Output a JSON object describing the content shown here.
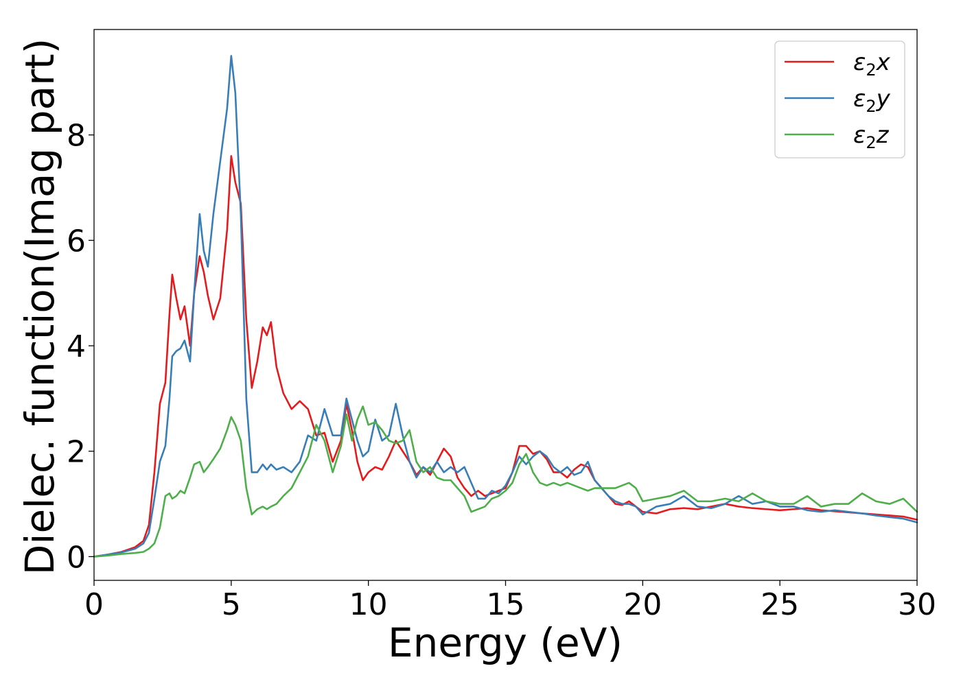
{
  "chart_data": {
    "type": "line",
    "xlabel": "Energy (eV)",
    "ylabel": "Dielec. function(Imag part)",
    "xlim": [
      0,
      30
    ],
    "ylim": [
      -0.45,
      10.0
    ],
    "xticks": [
      0,
      5,
      10,
      15,
      20,
      25,
      30
    ],
    "yticks": [
      0,
      2,
      4,
      6,
      8
    ],
    "grid": false,
    "legend_position": "top-right",
    "x": [
      0,
      0.5,
      1,
      1.5,
      1.8,
      2.0,
      2.2,
      2.4,
      2.6,
      2.75,
      2.85,
      3.0,
      3.15,
      3.3,
      3.5,
      3.65,
      3.85,
      4.0,
      4.15,
      4.35,
      4.6,
      4.85,
      5.0,
      5.15,
      5.35,
      5.55,
      5.75,
      5.95,
      6.15,
      6.3,
      6.45,
      6.65,
      6.9,
      7.2,
      7.5,
      7.8,
      8.1,
      8.4,
      8.7,
      9.0,
      9.2,
      9.4,
      9.6,
      9.8,
      10.0,
      10.25,
      10.5,
      10.75,
      11.0,
      11.25,
      11.5,
      11.75,
      12.0,
      12.25,
      12.5,
      12.75,
      13.0,
      13.25,
      13.5,
      13.75,
      14.0,
      14.25,
      14.5,
      14.75,
      15.0,
      15.25,
      15.5,
      15.75,
      16.0,
      16.25,
      16.5,
      16.75,
      17.0,
      17.25,
      17.5,
      17.75,
      18.0,
      18.25,
      18.5,
      18.75,
      19.0,
      19.25,
      19.5,
      19.75,
      20.0,
      20.5,
      21.0,
      21.5,
      22.0,
      22.5,
      23.0,
      23.5,
      24.0,
      24.5,
      25.0,
      25.5,
      26.0,
      26.5,
      27.0,
      27.5,
      28.0,
      28.5,
      29.0,
      29.5,
      30.0
    ],
    "series": [
      {
        "name": "ε₂x",
        "label_main": "ε",
        "label_sub": "2",
        "label_var": "x",
        "color": "#e41a1c",
        "values": [
          0,
          0.04,
          0.09,
          0.18,
          0.3,
          0.6,
          1.6,
          2.9,
          3.3,
          4.6,
          5.35,
          4.9,
          4.5,
          4.75,
          4.0,
          5.0,
          5.7,
          5.4,
          4.95,
          4.5,
          4.9,
          6.2,
          7.6,
          7.1,
          6.7,
          4.5,
          3.2,
          3.7,
          4.35,
          4.2,
          4.45,
          3.6,
          3.1,
          2.8,
          2.95,
          2.8,
          2.3,
          2.35,
          1.8,
          2.2,
          2.9,
          2.4,
          1.8,
          1.45,
          1.6,
          1.7,
          1.65,
          1.9,
          2.2,
          2.0,
          1.8,
          1.55,
          1.7,
          1.55,
          1.8,
          2.05,
          1.9,
          1.5,
          1.3,
          1.15,
          1.25,
          1.15,
          1.2,
          1.25,
          1.3,
          1.6,
          2.1,
          2.1,
          1.95,
          2.0,
          1.85,
          1.6,
          1.6,
          1.5,
          1.65,
          1.75,
          1.7,
          1.45,
          1.3,
          1.15,
          1.0,
          0.98,
          1.05,
          0.95,
          0.85,
          0.82,
          0.9,
          0.92,
          0.9,
          0.95,
          1.0,
          0.95,
          0.92,
          0.9,
          0.88,
          0.9,
          0.92,
          0.88,
          0.86,
          0.84,
          0.82,
          0.8,
          0.78,
          0.76,
          0.7
        ]
      },
      {
        "name": "ε₂y",
        "label_main": "ε",
        "label_sub": "2",
        "label_var": "y",
        "color": "#377eb8",
        "values": [
          0,
          0.04,
          0.08,
          0.15,
          0.25,
          0.45,
          1.1,
          1.8,
          2.1,
          3.0,
          3.8,
          3.9,
          3.95,
          4.1,
          3.7,
          5.0,
          6.5,
          5.8,
          5.5,
          6.5,
          7.5,
          8.5,
          9.5,
          8.8,
          6.5,
          3.0,
          1.6,
          1.6,
          1.75,
          1.65,
          1.75,
          1.65,
          1.7,
          1.6,
          1.8,
          2.3,
          2.2,
          2.8,
          2.3,
          2.3,
          3.0,
          2.6,
          2.2,
          1.9,
          2.0,
          2.6,
          2.2,
          2.3,
          2.9,
          2.3,
          1.8,
          1.5,
          1.7,
          1.6,
          1.8,
          1.6,
          1.7,
          1.6,
          1.7,
          1.4,
          1.1,
          1.1,
          1.25,
          1.2,
          1.35,
          1.6,
          1.9,
          1.75,
          1.9,
          2.0,
          1.9,
          1.7,
          1.6,
          1.7,
          1.55,
          1.6,
          1.8,
          1.45,
          1.3,
          1.15,
          1.05,
          1.0,
          1.0,
          0.95,
          0.8,
          0.95,
          1.0,
          1.15,
          0.95,
          0.92,
          1.0,
          1.15,
          1.0,
          1.05,
          0.95,
          0.95,
          0.88,
          0.85,
          0.88,
          0.85,
          0.82,
          0.78,
          0.75,
          0.72,
          0.65
        ]
      },
      {
        "name": "ε₂z",
        "label_main": "ε",
        "label_sub": "2",
        "label_var": "z",
        "color": "#4daf4a",
        "values": [
          0,
          0.02,
          0.05,
          0.07,
          0.09,
          0.15,
          0.25,
          0.55,
          1.15,
          1.2,
          1.1,
          1.15,
          1.25,
          1.2,
          1.5,
          1.75,
          1.8,
          1.6,
          1.7,
          1.85,
          2.05,
          2.4,
          2.65,
          2.5,
          2.2,
          1.3,
          0.8,
          0.9,
          0.95,
          0.9,
          0.95,
          1.0,
          1.15,
          1.3,
          1.6,
          1.9,
          2.5,
          2.2,
          1.6,
          2.1,
          2.7,
          2.2,
          2.6,
          2.85,
          2.5,
          2.55,
          2.4,
          2.2,
          2.15,
          2.2,
          2.4,
          1.8,
          1.6,
          1.7,
          1.5,
          1.45,
          1.45,
          1.3,
          1.15,
          0.85,
          0.9,
          0.95,
          1.1,
          1.15,
          1.25,
          1.4,
          1.75,
          1.95,
          1.6,
          1.4,
          1.35,
          1.4,
          1.35,
          1.4,
          1.35,
          1.3,
          1.25,
          1.3,
          1.3,
          1.3,
          1.3,
          1.35,
          1.4,
          1.3,
          1.05,
          1.1,
          1.15,
          1.25,
          1.05,
          1.05,
          1.1,
          1.05,
          1.2,
          1.05,
          1.0,
          1.0,
          1.15,
          0.95,
          1.0,
          1.0,
          1.2,
          1.05,
          1.0,
          1.1,
          0.85
        ]
      }
    ]
  }
}
